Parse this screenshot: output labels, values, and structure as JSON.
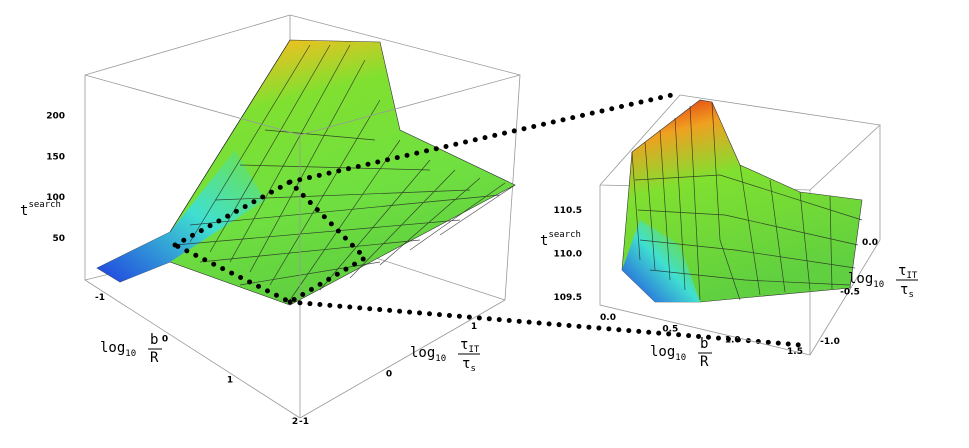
{
  "chart_data": [
    {
      "type": "surface3d",
      "zlabel": {
        "base": "t",
        "sup": "search"
      },
      "xlabel": {
        "prefix": "log",
        "sub": "10",
        "num": "b",
        "den": "R"
      },
      "ylabel": {
        "prefix": "log",
        "sub": "10",
        "num": "τ",
        "num_sub": "IT",
        "den": "τ",
        "den_sub": "s"
      },
      "xlim": [
        -1,
        2
      ],
      "xticks": [
        -1,
        0,
        1,
        2
      ],
      "ylim": [
        -1,
        1
      ],
      "yticks": [
        -1,
        0,
        1
      ],
      "zlim": [
        0,
        225
      ],
      "zticks": [
        50,
        100,
        150,
        200
      ]
    },
    {
      "type": "surface3d",
      "zlabel": {
        "base": "t",
        "sup": "search"
      },
      "xlabel": {
        "prefix": "log",
        "sub": "10",
        "num": "b",
        "den": "R"
      },
      "ylabel": {
        "prefix": "log",
        "sub": "10",
        "num": "τ",
        "num_sub": "IT",
        "den": "τ",
        "den_sub": "s"
      },
      "xlim": [
        0,
        1.5
      ],
      "xticks": [
        {
          "value": 0,
          "label": "0.0"
        },
        0.5,
        {
          "value": 1,
          "label": "1.0"
        },
        1.5
      ],
      "ylim": [
        -1,
        0
      ],
      "yticks": [
        {
          "value": -1,
          "label": "-1.0"
        },
        -0.5,
        {
          "value": 0,
          "label": "0.0"
        }
      ],
      "zlim": [
        109.5,
        110.5
      ],
      "zticks": [
        109.5,
        {
          "value": 110,
          "label": "110.0"
        },
        110.5
      ]
    }
  ]
}
